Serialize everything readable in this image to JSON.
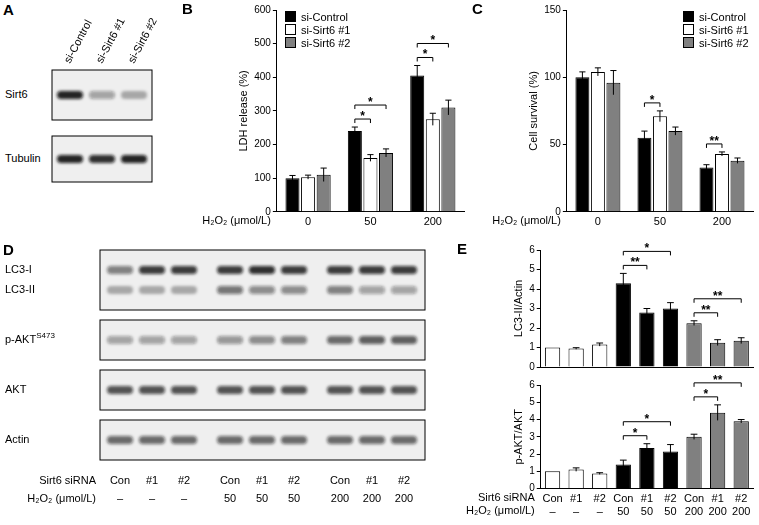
{
  "chart_data": [
    {
      "panel": "B",
      "type": "bar",
      "y_label": "LDH release (%)",
      "x_label": "H₂O₂ (μmol/L)",
      "categories": [
        "0",
        "50",
        "200"
      ],
      "series": [
        {
          "name": "si-Control",
          "color": "#000000",
          "values": [
            100,
            240,
            405
          ],
          "errors": [
            8,
            12,
            30
          ]
        },
        {
          "name": "si-Sirt6 #1",
          "color": "#ffffff",
          "values": [
            103,
            160,
            275
          ],
          "errors": [
            6,
            10,
            18
          ]
        },
        {
          "name": "si-Sirt6 #2",
          "color": "#808080",
          "values": [
            110,
            175,
            310
          ],
          "errors": [
            20,
            12,
            22
          ]
        }
      ],
      "ylim": [
        0,
        600
      ],
      "yticks": [
        0,
        100,
        200,
        300,
        400,
        500,
        600
      ],
      "grid": false,
      "legend": "upper left",
      "significance": [
        {
          "category": 1,
          "from": 0,
          "to": 1,
          "label": "*"
        },
        {
          "category": 1,
          "from": 0,
          "to": 2,
          "label": "*"
        },
        {
          "category": 2,
          "from": 0,
          "to": 1,
          "label": "*"
        },
        {
          "category": 2,
          "from": 0,
          "to": 2,
          "label": "*"
        }
      ]
    },
    {
      "panel": "C",
      "type": "bar",
      "y_label": "Cell survival (%)",
      "x_label": "H₂O₂ (μmol/L)",
      "categories": [
        "0",
        "50",
        "200"
      ],
      "series": [
        {
          "name": "si-Control",
          "color": "#000000",
          "values": [
            100,
            55,
            33
          ],
          "errors": [
            4,
            5,
            2
          ]
        },
        {
          "name": "si-Sirt6 #1",
          "color": "#ffffff",
          "values": [
            104,
            71,
            43
          ],
          "errors": [
            3,
            4,
            1.5
          ]
        },
        {
          "name": "si-Sirt6 #2",
          "color": "#808080",
          "values": [
            96,
            60,
            38
          ],
          "errors": [
            9,
            3,
            2
          ]
        }
      ],
      "ylim": [
        0,
        150
      ],
      "yticks": [
        0,
        50,
        100,
        150
      ],
      "grid": false,
      "legend": "upper right",
      "significance": [
        {
          "category": 1,
          "from": 0,
          "to": 1,
          "label": "*"
        },
        {
          "category": 2,
          "from": 0,
          "to": 1,
          "label": "**"
        }
      ]
    },
    {
      "panel": "E",
      "type": "bar",
      "y_label": "LC3-II/Actin",
      "categories": [
        "Con",
        "#1",
        "#2",
        "Con",
        "#1",
        "#2",
        "Con",
        "#1",
        "#2"
      ],
      "values": [
        1,
        0.95,
        1.15,
        4.3,
        2.8,
        3.0,
        2.25,
        1.25,
        1.35
      ],
      "errors": [
        null,
        0.04,
        0.08,
        0.5,
        0.2,
        0.3,
        0.12,
        0.15,
        0.15
      ],
      "colors": [
        "#ffffff",
        "#ffffff",
        "#ffffff",
        "#000000",
        "#000000",
        "#000000",
        "#808080",
        "#808080",
        "#808080"
      ],
      "ylim": [
        0,
        6
      ],
      "yticks": [
        0,
        1,
        2,
        3,
        4,
        5,
        6
      ],
      "grid": false,
      "tick_labels": "y",
      "significance": [
        {
          "from": 3,
          "to": 4,
          "label": "**"
        },
        {
          "from": 3,
          "to": 5,
          "label": "*"
        },
        {
          "from": 6,
          "to": 7,
          "label": "**"
        },
        {
          "from": 6,
          "to": 8,
          "label": "**"
        }
      ]
    },
    {
      "type": "bar",
      "y_label": "p-AKT/AKT",
      "categories": [
        "Con",
        "#1",
        "#2",
        "Con",
        "#1",
        "#2",
        "Con",
        "#1",
        "#2"
      ],
      "categories_row2": [
        "–",
        "–",
        "–",
        "50",
        "50",
        "50",
        "200",
        "200",
        "200"
      ],
      "row_titles": [
        "Sirt6 siRNA",
        "H₂O₂ (μmol/L)"
      ],
      "values": [
        1,
        1.1,
        0.87,
        1.4,
        2.35,
        2.15,
        3.0,
        4.4,
        3.9
      ],
      "errors": [
        null,
        0.1,
        0.05,
        0.25,
        0.25,
        0.4,
        0.15,
        0.45,
        0.1
      ],
      "colors": [
        "#ffffff",
        "#ffffff",
        "#ffffff",
        "#000000",
        "#000000",
        "#000000",
        "#808080",
        "#808080",
        "#808080"
      ],
      "ylim": [
        0,
        6
      ],
      "yticks": [
        0,
        1,
        2,
        3,
        4,
        5,
        6
      ],
      "grid": false,
      "significance": [
        {
          "from": 3,
          "to": 4,
          "label": "*"
        },
        {
          "from": 3,
          "to": 5,
          "label": "*"
        },
        {
          "from": 6,
          "to": 7,
          "label": "*"
        },
        {
          "from": 6,
          "to": 8,
          "label": "**"
        }
      ]
    }
  ],
  "blots": [
    {
      "panel": "A",
      "lanes": [
        "si-Control",
        "si-Sirt6 #1",
        "si-Sirt6 #2"
      ],
      "rows": [
        {
          "bands": [
            {
              "label": "Sirt6",
              "intensity": [
                0.9,
                0.35,
                0.3
              ]
            }
          ]
        },
        {
          "bands": [
            {
              "label": "Tubulin",
              "intensity": [
                0.9,
                0.85,
                0.9
              ]
            }
          ]
        }
      ]
    },
    {
      "panel": "D",
      "lane_rows": [
        {
          "title": "Sirt6 siRNA",
          "labels": [
            "Con",
            "#1",
            "#2",
            "Con",
            "#1",
            "#2",
            "Con",
            "#1",
            "#2"
          ]
        },
        {
          "title": "H₂O₂ (μmol/L)",
          "labels": [
            "–",
            "–",
            "–",
            "50",
            "50",
            "50",
            "200",
            "200",
            "200"
          ]
        }
      ],
      "rows": [
        {
          "bands": [
            {
              "label": "LC3-I",
              "intensity": [
                0.5,
                0.8,
                0.8,
                0.8,
                0.85,
                0.8,
                0.8,
                0.8,
                0.8
              ]
            },
            {
              "label": "LC3-II",
              "intensity": [
                0.3,
                0.3,
                0.3,
                0.55,
                0.45,
                0.45,
                0.5,
                0.35,
                0.35
              ]
            }
          ]
        },
        {
          "bands": [
            {
              "label": "p-AKT",
              "superscript": "S473",
              "intensity": [
                0.35,
                0.35,
                0.35,
                0.4,
                0.45,
                0.5,
                0.6,
                0.65,
                0.65
              ]
            }
          ]
        },
        {
          "bands": [
            {
              "label": "AKT",
              "intensity": [
                0.7,
                0.7,
                0.7,
                0.7,
                0.7,
                0.7,
                0.7,
                0.7,
                0.7
              ]
            }
          ]
        },
        {
          "bands": [
            {
              "label": "Actin",
              "intensity": [
                0.6,
                0.6,
                0.6,
                0.6,
                0.6,
                0.6,
                0.6,
                0.6,
                0.6
              ]
            }
          ]
        }
      ]
    }
  ]
}
